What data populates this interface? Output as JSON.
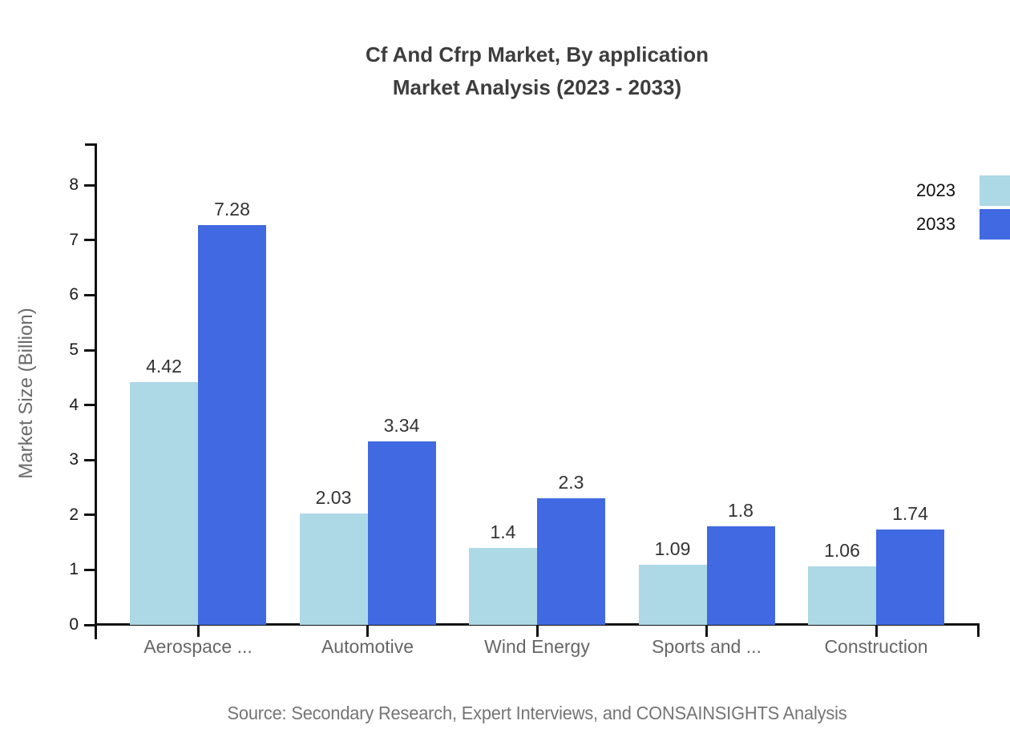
{
  "title": {
    "line1": "Cf And Cfrp Market, By application",
    "line2": "Market Analysis (2023 - 2033)"
  },
  "y_axis": {
    "label": "Market Size (Billion)"
  },
  "legend": {
    "items": [
      {
        "label": "2023",
        "color": "#ADD8E6"
      },
      {
        "label": "2033",
        "color": "#4169E1"
      }
    ]
  },
  "source_note": "Source: Secondary Research, Expert Interviews, and CONSAINSIGHTS Analysis",
  "colors": {
    "series_2023": "#ADD8E6",
    "series_2033": "#4169E1",
    "axis": "#111111",
    "title_text": "#3d3d3d",
    "category_text": "#666666",
    "value_label_text": "#333333",
    "y_tick_text": "#1a1a1a",
    "source_text": "#757575"
  },
  "chart_data": {
    "type": "bar",
    "title": "Cf And Cfrp Market, By application Market Analysis (2023 - 2033)",
    "categories": [
      "Aerospace ...",
      "Automotive",
      "Wind Energy",
      "Sports and ...",
      "Construction"
    ],
    "series": [
      {
        "name": "2023",
        "color": "#ADD8E6",
        "values": [
          4.42,
          2.03,
          1.4,
          1.09,
          1.06
        ],
        "labels": [
          "4.42",
          "2.03",
          "1.4",
          "1.09",
          "1.06"
        ]
      },
      {
        "name": "2033",
        "color": "#4169E1",
        "values": [
          7.28,
          3.34,
          2.3,
          1.8,
          1.74
        ],
        "labels": [
          "7.28",
          "3.34",
          "2.3",
          "1.8",
          "1.74"
        ]
      }
    ],
    "xlabel": "",
    "ylabel": "Market Size (Billion)",
    "ylim": [
      0,
      8.75
    ],
    "yticks": [
      0,
      1,
      2,
      3,
      4,
      5,
      6,
      7,
      8
    ],
    "grid": false,
    "legend_position": "top-right",
    "bar_value_labels_shown": true
  }
}
